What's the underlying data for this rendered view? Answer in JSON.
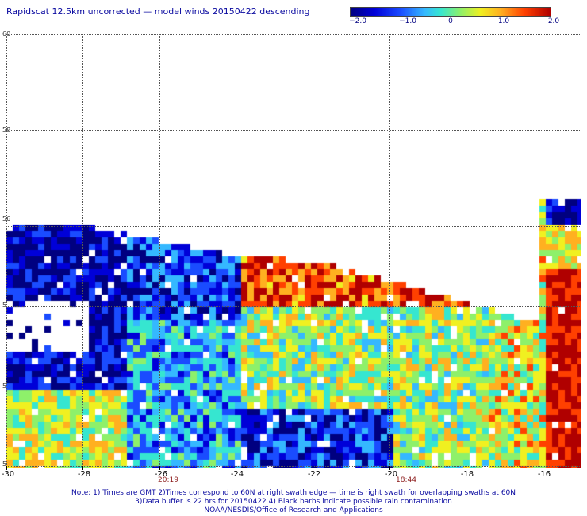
{
  "title": "Rapidscat 12.5km uncorrected — model winds 20150422 descending",
  "colorbar": {
    "labels": [
      "−2.0",
      "−1.0",
      "0",
      "1.0",
      "2.0"
    ],
    "colors": [
      "#000080",
      "#0000d8",
      "#1a4cff",
      "#35b8ff",
      "#36e6d0",
      "#8ef06a",
      "#f0f020",
      "#ffb020",
      "#ff4000",
      "#b00000"
    ]
  },
  "y_labels": [
    "60",
    "58",
    "56",
    "5",
    "5",
    "5"
  ],
  "x_labels": [
    "-30",
    "-28",
    "-26",
    "-24",
    "-22",
    "-20",
    "-18",
    "-16"
  ],
  "times": [
    "20:19",
    "18:44"
  ],
  "notes": [
    "Note: 1) Times are GMT 2)Times correspond to 60N at right swath edge — time is right swath for overlapping swaths at 60N",
    "3)Data buffer is 22 hrs for 20150422 4) Black barbs indicate possible rain contamination",
    "NOAA/NESDIS/Office of Research and Applications"
  ]
}
